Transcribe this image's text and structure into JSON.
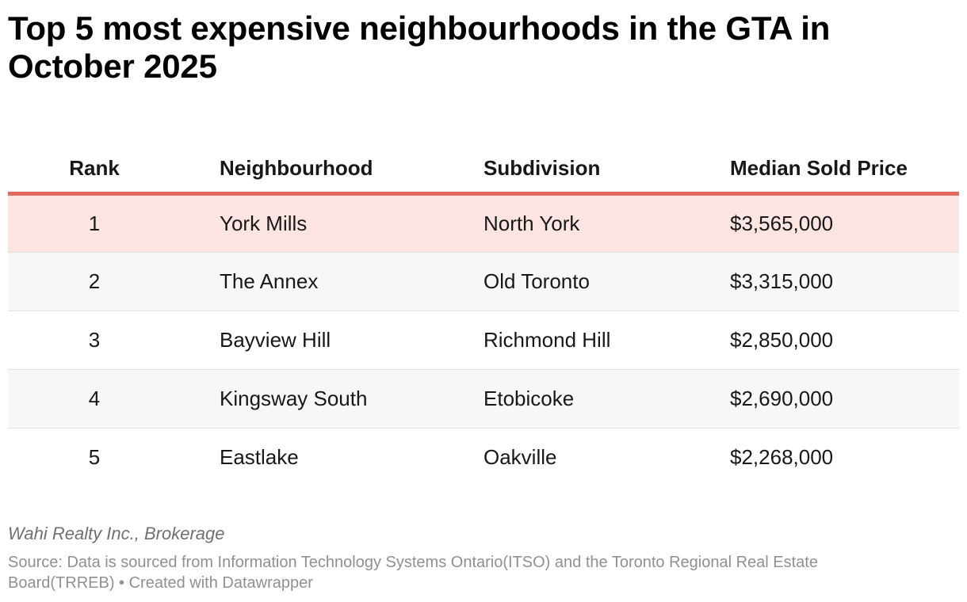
{
  "chart_data": {
    "type": "table",
    "title": "Top 5 most expensive neighbourhoods in the GTA in October 2025",
    "columns": [
      "Rank",
      "Neighbourhood",
      "Subdivision",
      "Median Sold Price"
    ],
    "rows": [
      {
        "rank": "1",
        "neighbourhood": "York Mills",
        "subdivision": "North York",
        "price": "$3,565,000",
        "value": 3565000
      },
      {
        "rank": "2",
        "neighbourhood": "The Annex",
        "subdivision": "Old Toronto",
        "price": "$3,315,000",
        "value": 3315000
      },
      {
        "rank": "3",
        "neighbourhood": "Bayview Hill",
        "subdivision": "Richmond Hill",
        "price": "$2,850,000",
        "value": 2850000
      },
      {
        "rank": "4",
        "neighbourhood": "Kingsway South",
        "subdivision": "Etobicoke",
        "price": "$2,690,000",
        "value": 2690000
      },
      {
        "rank": "5",
        "neighbourhood": "Eastlake",
        "subdivision": "Oakville",
        "price": "$2,268,000",
        "value": 2268000
      }
    ],
    "highlighted_row": 1
  },
  "footer": {
    "byline": "Wahi Realty Inc., Brokerage",
    "source": "Source: Data is sourced from Information Technology Systems Ontario(ITSO) and the Toronto Regional Real Estate Board(TRREB) • Created with Datawrapper"
  },
  "colors": {
    "header_rule": "#e06a5e",
    "highlight_row": "#fbe4e2",
    "stripe_row": "#f7f7f7"
  }
}
